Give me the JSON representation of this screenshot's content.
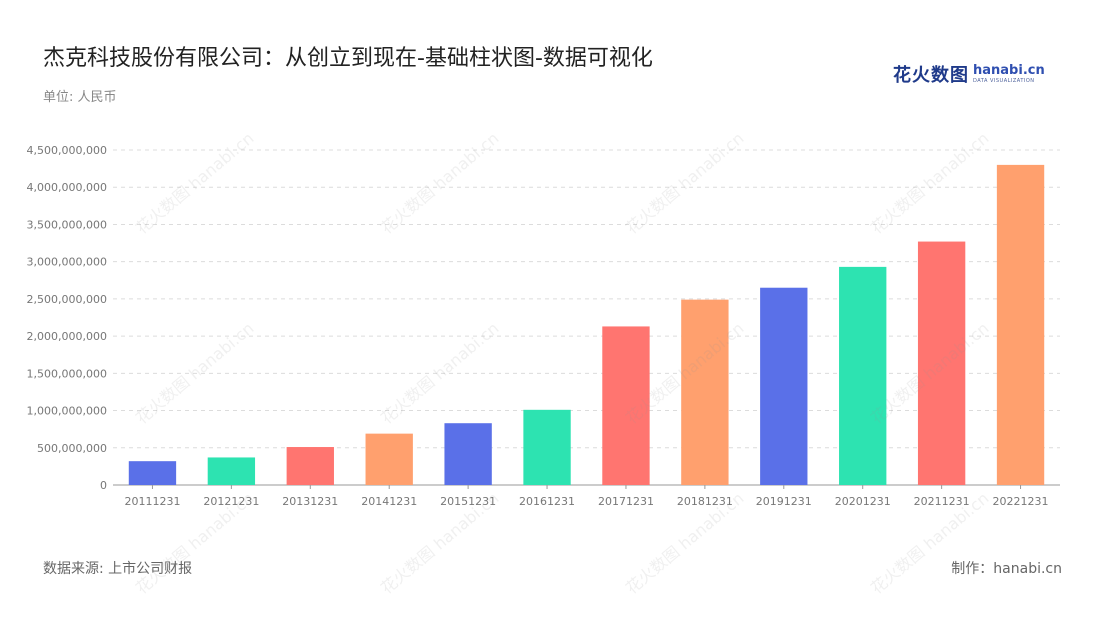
{
  "title": "杰克科技股份有限公司：从创立到现在-基础柱状图-数据可视化",
  "unit": "单位: 人民币",
  "source": "数据来源: 上市公司财报",
  "credit": "制作：hanabi.cn",
  "logo": {
    "cn": "花火数图",
    "en": "hanabi.cn",
    "sub": "DATA VISUALIZATION"
  },
  "watermark": "花火数图 hanabi.cn",
  "chart_data": {
    "type": "bar",
    "categories": [
      "20111231",
      "20121231",
      "20131231",
      "20141231",
      "20151231",
      "20161231",
      "20171231",
      "20181231",
      "20191231",
      "20201231",
      "20211231",
      "20221231"
    ],
    "values": [
      320000000,
      370000000,
      510000000,
      690000000,
      830000000,
      1010000000,
      2130000000,
      2490000000,
      2650000000,
      2930000000,
      3270000000,
      4300000000
    ],
    "colors": [
      "#5a70e8",
      "#2de3b1",
      "#ff7570",
      "#ffa06e",
      "#5a70e8",
      "#2de3b1",
      "#ff7570",
      "#ffa06e",
      "#5a70e8",
      "#2de3b1",
      "#ff7570",
      "#ffa06e"
    ],
    "ylim": [
      0,
      4500000000
    ],
    "yticks": [
      0,
      500000000,
      1000000000,
      1500000000,
      2000000000,
      2500000000,
      3000000000,
      3500000000,
      4000000000,
      4500000000
    ],
    "ytick_labels": [
      "0",
      "500,000,000",
      "1,000,000,000",
      "1,500,000,000",
      "2,000,000,000",
      "2,500,000,000",
      "3,000,000,000",
      "3,500,000,000",
      "4,000,000,000",
      "4,500,000,000"
    ],
    "grid": true,
    "xlabel": "",
    "ylabel": ""
  }
}
